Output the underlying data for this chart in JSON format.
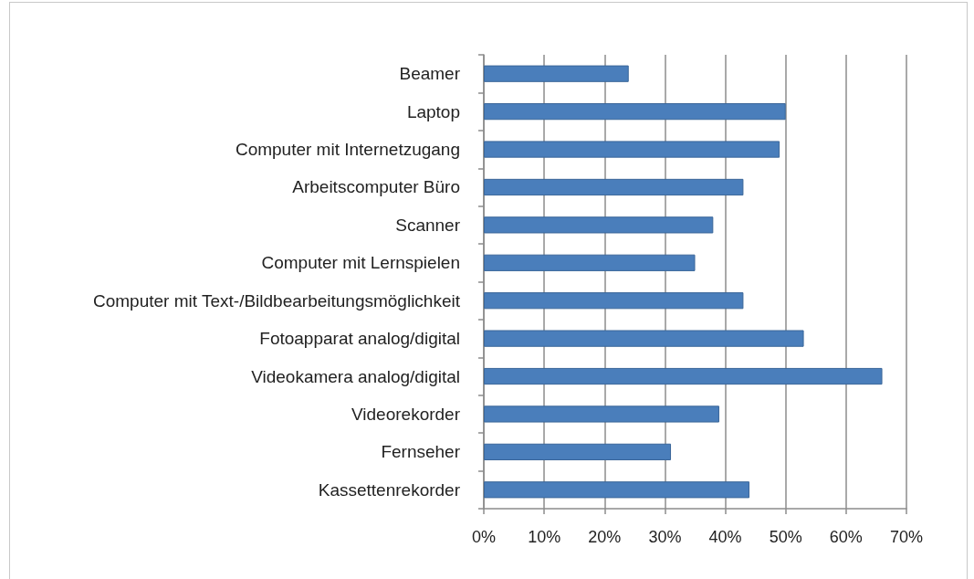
{
  "chart_data": {
    "type": "bar",
    "orientation": "horizontal",
    "categories": [
      "Beamer",
      "Laptop",
      "Computer mit Internetzugang",
      "Arbeitscomputer Büro",
      "Scanner",
      "Computer mit Lernspielen",
      "Computer mit Text-/Bildbearbeitungsmöglichkeit",
      "Fotoapparat analog/digital",
      "Videokamera analog/digital",
      "Videorekorder",
      "Fernseher",
      "Kassettenrekorder"
    ],
    "values": [
      24,
      50,
      49,
      43,
      38,
      35,
      43,
      53,
      66,
      39,
      31,
      44
    ],
    "color": "#4a7ebb",
    "xlim": [
      0,
      70
    ],
    "xticks": [
      {
        "value": 0,
        "label": "0%"
      },
      {
        "value": 10,
        "label": "10%"
      },
      {
        "value": 20,
        "label": "20%"
      },
      {
        "value": 30,
        "label": "30%"
      },
      {
        "value": 40,
        "label": "40%"
      },
      {
        "value": 50,
        "label": "50%"
      },
      {
        "value": 60,
        "label": "60%"
      },
      {
        "value": 70,
        "label": "70%"
      }
    ],
    "grid": "x"
  }
}
